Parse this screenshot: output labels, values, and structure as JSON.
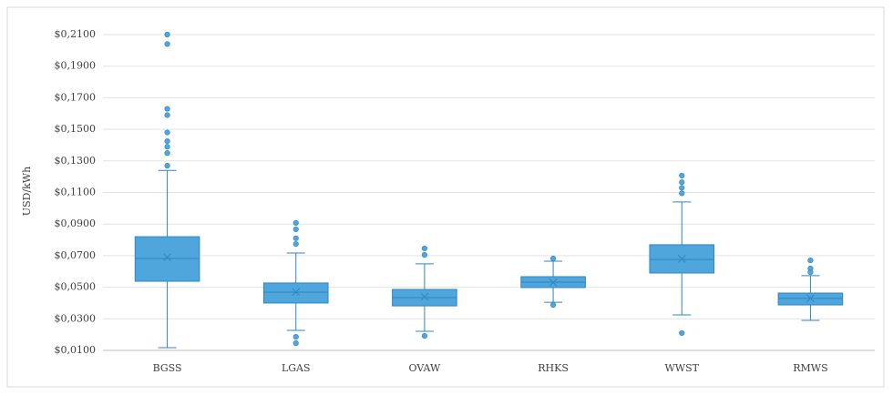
{
  "chart_data": {
    "type": "box",
    "y_label": "USD/kWh",
    "color": "#4fa6dc",
    "edge_color": "#2f86c0",
    "ylim": [
      0.01,
      0.21
    ],
    "yticks": [
      {
        "value": 0.01,
        "label": "$0,0100"
      },
      {
        "value": 0.03,
        "label": "$0,0300"
      },
      {
        "value": 0.05,
        "label": "$0,0500"
      },
      {
        "value": 0.07,
        "label": "$0,0700"
      },
      {
        "value": 0.09,
        "label": "$0,0900"
      },
      {
        "value": 0.11,
        "label": "$0,1100"
      },
      {
        "value": 0.13,
        "label": "$0,1300"
      },
      {
        "value": 0.15,
        "label": "$0,1500"
      },
      {
        "value": 0.17,
        "label": "$0,1700"
      },
      {
        "value": 0.19,
        "label": "$0,1900"
      },
      {
        "value": 0.21,
        "label": "$0,2100"
      }
    ],
    "grid": true,
    "categories": [
      "BGSS",
      "LGAS",
      "OVAW",
      "RHKS",
      "WWST",
      "RMWS"
    ],
    "whisker_low": [
      0.0117,
      0.0227,
      0.0221,
      0.0405,
      0.0325,
      0.029
    ],
    "q1": [
      0.0538,
      0.04,
      0.0382,
      0.0498,
      0.059,
      0.0388
    ],
    "median": [
      0.0682,
      0.0469,
      0.0434,
      0.0532,
      0.0676,
      0.0429
    ],
    "q3": [
      0.082,
      0.0527,
      0.0486,
      0.0567,
      0.0769,
      0.0463
    ],
    "whisker_high": [
      0.124,
      0.0717,
      0.0648,
      0.0665,
      0.104,
      0.0573
    ],
    "mean": [
      0.069,
      0.047,
      0.044,
      0.053,
      0.068,
      0.043
    ],
    "outliers": [
      [
        0.21,
        0.204,
        0.163,
        0.159,
        0.148,
        0.1425,
        0.139,
        0.135,
        0.127
      ],
      [
        0.0907,
        0.0867,
        0.081,
        0.0774,
        0.0186,
        0.0146
      ],
      [
        0.0746,
        0.0705,
        0.0192
      ],
      [
        0.0682,
        0.0388
      ],
      [
        0.1207,
        0.1165,
        0.113,
        0.1095,
        0.021
      ],
      [
        0.067,
        0.0619,
        0.0595
      ]
    ]
  }
}
